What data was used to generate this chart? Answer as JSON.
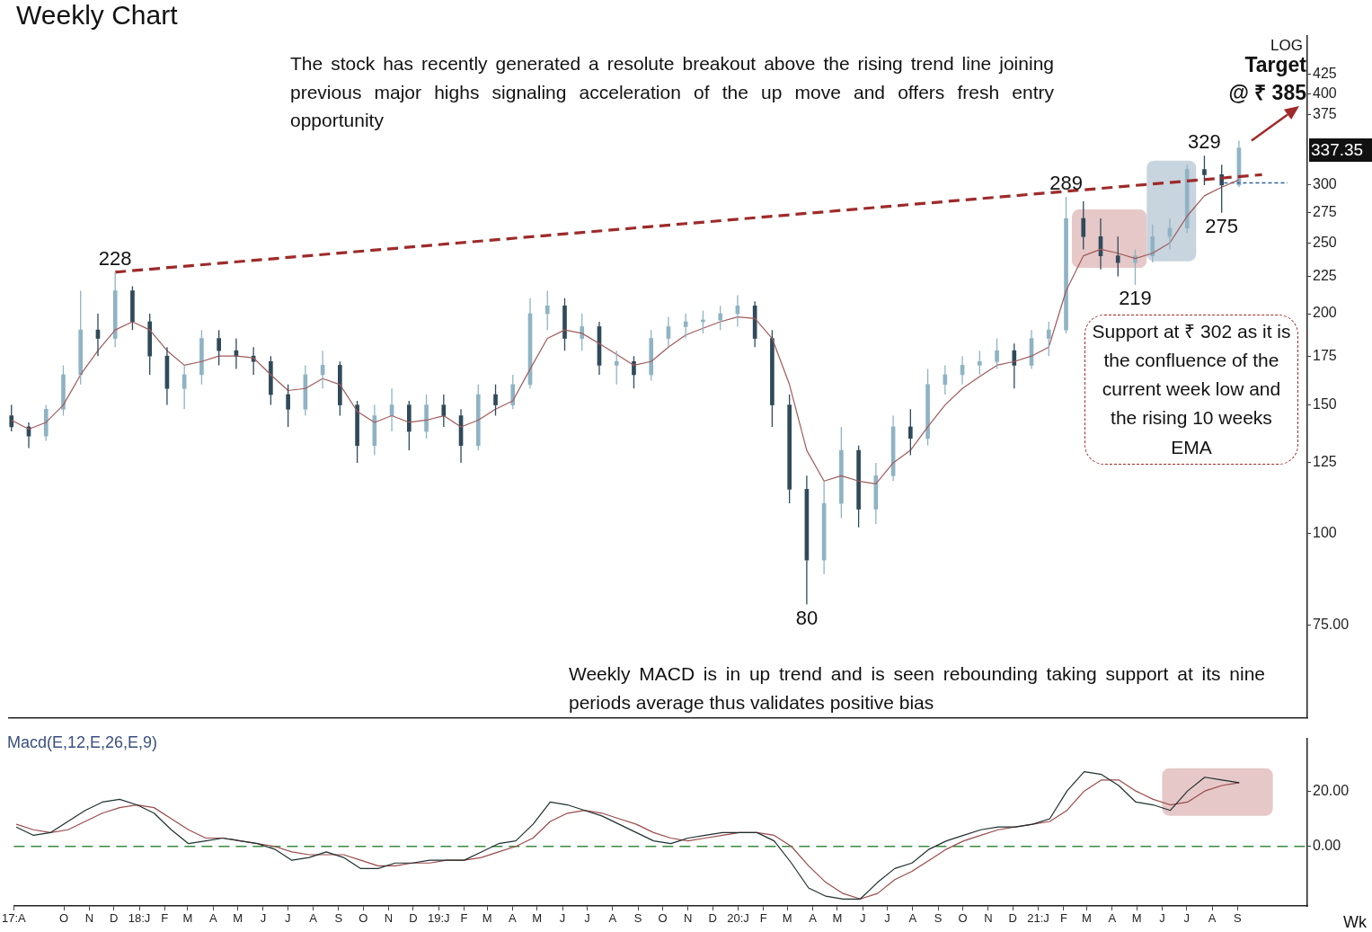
{
  "chart_data": [
    {
      "type": "candlestick",
      "title": "Weekly Chart",
      "log": true,
      "tick_labels": "y",
      "colors": [
        "#2f4a5a",
        "#2f4a5a",
        "#8fb3c4",
        "#8fb3c4",
        "#8fb3c4",
        "#2f4a5a",
        "#8fb3c4",
        "#2f4a5a",
        "#2f4a5a",
        "#2f4a5a",
        "#8fb3c4",
        "#8fb3c4",
        "#2f4a5a",
        "#2f4a5a",
        "#2f4a5a",
        "#2f4a5a",
        "#2f4a5a",
        "#8fb3c4",
        "#8fb3c4",
        "#2f4a5a",
        "#2f4a5a",
        "#8fb3c4",
        "#8fb3c4",
        "#2f4a5a",
        "#8fb3c4",
        "#2f4a5a",
        "#2f4a5a",
        "#8fb3c4",
        "#2f4a5a",
        "#8fb3c4",
        "#8fb3c4",
        "#8fb3c4",
        "#2f4a5a",
        "#8fb3c4",
        "#2f4a5a",
        "#8fb3c4",
        "#2f4a5a",
        "#8fb3c4",
        "#8fb3c4",
        "#8fb3c4",
        "#8fb3c4",
        "#8fb3c4",
        "#8fb3c4",
        "#2f4a5a",
        "#2f4a5a",
        "#2f4a5a",
        "#2f4a5a",
        "#8fb3c4",
        "#8fb3c4",
        "#2f4a5a",
        "#8fb3c4",
        "#8fb3c4",
        "#2f4a5a",
        "#8fb3c4",
        "#8fb3c4",
        "#8fb3c4",
        "#8fb3c4",
        "#8fb3c4",
        "#2f4a5a",
        "#8fb3c4",
        "#8fb3c4",
        "#8fb3c4",
        "#2f4a5a",
        "#2f4a5a",
        "#2f4a5a",
        "#8fb3c4",
        "#8fb3c4",
        "#8fb3c4",
        "#8fb3c4",
        "#2f4a5a",
        "#2f4a5a",
        "#8fb3c4"
      ],
      "x": [
        "2017-08-04",
        "2017-08-25",
        "2017-09-15",
        "2017-10-06",
        "2017-10-27",
        "2017-11-17",
        "2017-12-08",
        "2017-12-29",
        "2018-01-19",
        "2018-02-09",
        "2018-03-02",
        "2018-03-23",
        "2018-04-13",
        "2018-05-04",
        "2018-05-25",
        "2018-06-15",
        "2018-07-06",
        "2018-07-27",
        "2018-08-17",
        "2018-09-07",
        "2018-09-28",
        "2018-10-19",
        "2018-11-09",
        "2018-11-30",
        "2018-12-21",
        "2019-01-11",
        "2019-02-01",
        "2019-02-22",
        "2019-03-15",
        "2019-04-05",
        "2019-04-26",
        "2019-05-17",
        "2019-06-07",
        "2019-06-28",
        "2019-07-19",
        "2019-08-09",
        "2019-08-30",
        "2019-09-20",
        "2019-10-11",
        "2019-11-01",
        "2019-11-22",
        "2019-12-13",
        "2020-01-03",
        "2020-01-24",
        "2020-02-14",
        "2020-03-06",
        "2020-03-27",
        "2020-04-17",
        "2020-05-08",
        "2020-05-29",
        "2020-06-19",
        "2020-07-10",
        "2020-07-31",
        "2020-08-21",
        "2020-09-11",
        "2020-10-02",
        "2020-10-23",
        "2020-11-13",
        "2020-12-04",
        "2020-12-25",
        "2021-01-15",
        "2021-02-05",
        "2021-02-26",
        "2021-03-19",
        "2021-04-09",
        "2021-04-30",
        "2021-05-21",
        "2021-06-11",
        "2021-07-02",
        "2021-07-23",
        "2021-08-13",
        "2021-09-03"
      ],
      "ohlc": [
        [
          145,
          150,
          138,
          140
        ],
        [
          140,
          142,
          131,
          136
        ],
        [
          136,
          150,
          134,
          148
        ],
        [
          148,
          170,
          145,
          165
        ],
        [
          165,
          215,
          160,
          190
        ],
        [
          190,
          200,
          175,
          185
        ],
        [
          185,
          228,
          180,
          215
        ],
        [
          215,
          218,
          190,
          195
        ],
        [
          195,
          200,
          165,
          175
        ],
        [
          175,
          180,
          150,
          158
        ],
        [
          158,
          170,
          148,
          165
        ],
        [
          165,
          190,
          160,
          185
        ],
        [
          185,
          190,
          170,
          178
        ],
        [
          178,
          185,
          168,
          175
        ],
        [
          175,
          180,
          165,
          172
        ],
        [
          172,
          175,
          150,
          155
        ],
        [
          155,
          160,
          140,
          148
        ],
        [
          148,
          170,
          145,
          165
        ],
        [
          165,
          178,
          158,
          170
        ],
        [
          170,
          172,
          145,
          150
        ],
        [
          150,
          152,
          125,
          132
        ],
        [
          132,
          150,
          128,
          145
        ],
        [
          145,
          158,
          138,
          150
        ],
        [
          150,
          152,
          130,
          138
        ],
        [
          138,
          155,
          135,
          150
        ],
        [
          150,
          155,
          140,
          145
        ],
        [
          145,
          148,
          125,
          132
        ],
        [
          132,
          160,
          130,
          155
        ],
        [
          155,
          160,
          145,
          150
        ],
        [
          150,
          165,
          148,
          160
        ],
        [
          160,
          210,
          158,
          200
        ],
        [
          200,
          215,
          190,
          205
        ],
        [
          205,
          210,
          178,
          185
        ],
        [
          185,
          200,
          178,
          192
        ],
        [
          192,
          195,
          165,
          170
        ],
        [
          170,
          178,
          160,
          172
        ],
        [
          172,
          175,
          158,
          165
        ],
        [
          165,
          190,
          162,
          185
        ],
        [
          185,
          198,
          180,
          192
        ],
        [
          192,
          200,
          185,
          195
        ],
        [
          195,
          202,
          188,
          196
        ],
        [
          196,
          205,
          190,
          200
        ],
        [
          200,
          212,
          192,
          205
        ],
        [
          205,
          208,
          180,
          185
        ],
        [
          185,
          190,
          140,
          150
        ],
        [
          150,
          155,
          110,
          115
        ],
        [
          115,
          120,
          80,
          92
        ],
        [
          92,
          118,
          88,
          110
        ],
        [
          110,
          140,
          105,
          130
        ],
        [
          130,
          132,
          102,
          108
        ],
        [
          108,
          125,
          103,
          120
        ],
        [
          120,
          145,
          118,
          140
        ],
        [
          140,
          148,
          128,
          135
        ],
        [
          135,
          168,
          132,
          160
        ],
        [
          160,
          170,
          155,
          165
        ],
        [
          165,
          175,
          160,
          170
        ],
        [
          170,
          178,
          165,
          172
        ],
        [
          172,
          185,
          168,
          178
        ],
        [
          178,
          182,
          158,
          170
        ],
        [
          170,
          190,
          168,
          185
        ],
        [
          185,
          195,
          175,
          190
        ],
        [
          190,
          289,
          188,
          270
        ],
        [
          270,
          285,
          245,
          255
        ],
        [
          255,
          270,
          230,
          240
        ],
        [
          240,
          255,
          225,
          235
        ],
        [
          235,
          245,
          219,
          240
        ],
        [
          240,
          265,
          235,
          255
        ],
        [
          255,
          270,
          245,
          262
        ],
        [
          262,
          320,
          258,
          315
        ],
        [
          315,
          329,
          300,
          310
        ],
        [
          310,
          320,
          275,
          300
        ],
        [
          300,
          345,
          298,
          337.35
        ]
      ],
      "series": [
        {
          "type": "line",
          "color": "#a05a5a",
          "values": [
            143,
            139,
            142,
            150,
            165,
            178,
            190,
            195,
            190,
            178,
            170,
            172,
            175,
            175,
            174,
            165,
            157,
            158,
            163,
            160,
            147,
            142,
            145,
            142,
            143,
            145,
            140,
            143,
            148,
            152,
            168,
            185,
            190,
            188,
            182,
            176,
            170,
            172,
            180,
            187,
            191,
            195,
            198,
            197,
            185,
            160,
            130,
            118,
            120,
            118,
            117,
            125,
            130,
            140,
            150,
            158,
            164,
            170,
            172,
            175,
            180,
            215,
            240,
            245,
            242,
            238,
            242,
            250,
            272,
            290,
            298,
            305
          ]
        },
        {
          "type": "line",
          "color": "#9e2a2a",
          "line_style": "dashed",
          "x": [
            "2017-12-08",
            "2021-10-01"
          ],
          "values": [
            228,
            310
          ]
        },
        {
          "type": "line",
          "color": "#2f5f9a",
          "line_style": "dotted",
          "x": [
            "2021-08-16",
            "2021-11-01"
          ],
          "values": [
            302,
            302
          ]
        }
      ],
      "xlim": [
        "2017-08-01",
        "2021-11-25"
      ],
      "ylim": [
        56,
        480
      ],
      "yticks": [
        {
          "value": 75,
          "label": "75.00"
        },
        100,
        125,
        150,
        175,
        200,
        225,
        250,
        275,
        300,
        375,
        400,
        425
      ],
      "bands": [
        {
          "axis": "x",
          "from": "2021-02-12",
          "to": "2021-05-14",
          "color": "#e6c8c8"
        },
        {
          "axis": "x",
          "from": "2021-05-14",
          "to": "2021-07-13",
          "color": "#c8d4de"
        }
      ],
      "annotations": [
        "The stock has recently generated a resolute breakout above the rising trend line joining previous major highs signaling acceleration of the up move and offers fresh entry opportunity",
        "Support at ₹ 302 as it is the confluence of the current week low and the rising 10 weeks EMA",
        "LOG",
        {
          "text": "228",
          "x": "2017-12-08",
          "y": 228
        },
        {
          "text": "289",
          "x": "2021-02-05",
          "y": 289
        },
        {
          "text": "219",
          "x": "2021-04-30",
          "y": 219
        },
        {
          "text": "80",
          "x": "2020-03-27",
          "y": 80
        },
        {
          "text": "329",
          "x": "2021-07-23",
          "y": 329
        },
        {
          "text": "275",
          "x": "2021-08-13",
          "y": 275
        },
        "Target @ ₹ 385",
        "337.35"
      ]
    },
    {
      "type": "line",
      "title": "Macd(E,12,E,26,E,9)",
      "x": [
        "2017-08-04",
        "2017-08-25",
        "2017-09-15",
        "2017-10-06",
        "2017-10-27",
        "2017-11-17",
        "2017-12-08",
        "2017-12-29",
        "2018-01-19",
        "2018-02-09",
        "2018-03-02",
        "2018-03-23",
        "2018-04-13",
        "2018-05-04",
        "2018-05-25",
        "2018-06-15",
        "2018-07-06",
        "2018-07-27",
        "2018-08-17",
        "2018-09-07",
        "2018-09-28",
        "2018-10-19",
        "2018-11-09",
        "2018-11-30",
        "2018-12-21",
        "2019-01-11",
        "2019-02-01",
        "2019-02-22",
        "2019-03-15",
        "2019-04-05",
        "2019-04-26",
        "2019-05-17",
        "2019-06-07",
        "2019-06-28",
        "2019-07-19",
        "2019-08-09",
        "2019-08-30",
        "2019-09-20",
        "2019-10-11",
        "2019-11-01",
        "2019-11-22",
        "2019-12-13",
        "2020-01-03",
        "2020-01-24",
        "2020-02-14",
        "2020-03-06",
        "2020-03-27",
        "2020-04-17",
        "2020-05-08",
        "2020-05-29",
        "2020-06-19",
        "2020-07-10",
        "2020-07-31",
        "2020-08-21",
        "2020-09-11",
        "2020-10-02",
        "2020-10-23",
        "2020-11-13",
        "2020-12-04",
        "2020-12-25",
        "2021-01-15",
        "2021-02-05",
        "2021-02-26",
        "2021-03-19",
        "2021-04-09",
        "2021-04-30",
        "2021-05-21",
        "2021-06-11",
        "2021-07-02",
        "2021-07-23",
        "2021-08-13",
        "2021-09-03"
      ],
      "series": [
        {
          "type": "line",
          "color": "#1f2f2f",
          "values": [
            7,
            4,
            5,
            9,
            13,
            16,
            17,
            15,
            12,
            6,
            1,
            2,
            3,
            2,
            1,
            -1,
            -5,
            -4,
            -2,
            -4,
            -8,
            -8,
            -6,
            -6,
            -5,
            -5,
            -5,
            -2,
            1,
            2,
            8,
            16,
            15,
            13,
            11,
            8,
            5,
            2,
            1,
            3,
            4,
            5,
            5,
            5,
            2,
            -6,
            -15,
            -18,
            -19,
            -19,
            -13,
            -8,
            -6,
            -1,
            2,
            4,
            6,
            7,
            7,
            8,
            10,
            20,
            27,
            26,
            22,
            16,
            15,
            13,
            20,
            25,
            24,
            23
          ]
        },
        {
          "type": "line",
          "color": "#9a4a4a",
          "values": [
            8,
            6,
            5,
            6,
            9,
            12,
            14,
            15,
            14,
            10,
            6,
            3,
            3,
            2,
            1,
            0,
            -2,
            -3,
            -3,
            -3,
            -5,
            -7,
            -7,
            -6,
            -6,
            -5,
            -5,
            -4,
            -2,
            0,
            3,
            9,
            12,
            13,
            12,
            10,
            8,
            5,
            3,
            2,
            3,
            4,
            5,
            5,
            4,
            0,
            -7,
            -13,
            -17,
            -19,
            -17,
            -12,
            -9,
            -5,
            -1,
            2,
            4,
            6,
            7,
            8,
            9,
            13,
            20,
            24,
            24,
            20,
            17,
            15,
            16,
            20,
            22,
            23
          ]
        }
      ],
      "xlim": [
        "2017-08-01",
        "2021-11-25"
      ],
      "ylim": [
        -21.5,
        39
      ],
      "xticks": [
        {
          "value": "2017-08",
          "label": "17:A"
        },
        {
          "value": "2017-10",
          "label": "O"
        },
        {
          "value": "2017-11",
          "label": "N"
        },
        {
          "value": "2017-12",
          "label": "D"
        },
        {
          "value": "2018-01",
          "label": "18:J"
        },
        {
          "value": "2018-02",
          "label": "F"
        },
        {
          "value": "2018-03",
          "label": "M"
        },
        {
          "value": "2018-04",
          "label": "A"
        },
        {
          "value": "2018-05",
          "label": "M"
        },
        {
          "value": "2018-06",
          "label": "J"
        },
        {
          "value": "2018-07",
          "label": "J"
        },
        {
          "value": "2018-08",
          "label": "A"
        },
        {
          "value": "2018-09",
          "label": "S"
        },
        {
          "value": "2018-10",
          "label": "O"
        },
        {
          "value": "2018-11",
          "label": "N"
        },
        {
          "value": "2018-12",
          "label": "D"
        },
        {
          "value": "2019-01",
          "label": "19:J"
        },
        {
          "value": "2019-02",
          "label": "F"
        },
        {
          "value": "2019-03",
          "label": "M"
        },
        {
          "value": "2019-04",
          "label": "A"
        },
        {
          "value": "2019-05",
          "label": "M"
        },
        {
          "value": "2019-06",
          "label": "J"
        },
        {
          "value": "2019-07",
          "label": "J"
        },
        {
          "value": "2019-08",
          "label": "A"
        },
        {
          "value": "2019-09",
          "label": "S"
        },
        {
          "value": "2019-10",
          "label": "O"
        },
        {
          "value": "2019-11",
          "label": "N"
        },
        {
          "value": "2019-12",
          "label": "D"
        },
        {
          "value": "2020-01",
          "label": "20:J"
        },
        {
          "value": "2020-02",
          "label": "F"
        },
        {
          "value": "2020-03",
          "label": "M"
        },
        {
          "value": "2020-04",
          "label": "A"
        },
        {
          "value": "2020-05",
          "label": "M"
        },
        {
          "value": "2020-06",
          "label": "J"
        },
        {
          "value": "2020-07",
          "label": "J"
        },
        {
          "value": "2020-08",
          "label": "A"
        },
        {
          "value": "2020-09",
          "label": "S"
        },
        {
          "value": "2020-10",
          "label": "O"
        },
        {
          "value": "2020-11",
          "label": "N"
        },
        {
          "value": "2020-12",
          "label": "D"
        },
        {
          "value": "2021-01",
          "label": "21:J"
        },
        {
          "value": "2021-02",
          "label": "F"
        },
        {
          "value": "2021-03",
          "label": "M"
        },
        {
          "value": "2021-04",
          "label": "A"
        },
        {
          "value": "2021-05",
          "label": "M"
        },
        {
          "value": "2021-06",
          "label": "J"
        },
        {
          "value": "2021-07",
          "label": "J"
        },
        {
          "value": "2021-08",
          "label": "A"
        },
        {
          "value": "2021-09",
          "label": "S"
        }
      ],
      "yticks": [
        {
          "value": 0,
          "label": "0.00"
        },
        {
          "value": 20,
          "label": "20.00"
        }
      ],
      "ref_lines": [
        {
          "axis": "y",
          "value": 0,
          "color": "#3a8a3a",
          "line_style": "dashed"
        }
      ],
      "bands": [
        {
          "axis": "x",
          "from": "2021-06-01",
          "to": "2021-10-14",
          "color": "#e6c8c8"
        }
      ],
      "annotations": [
        "Weekly MACD is in up trend and is seen rebounding taking support at its nine periods average thus validates positive bias",
        "Wk"
      ]
    }
  ]
}
